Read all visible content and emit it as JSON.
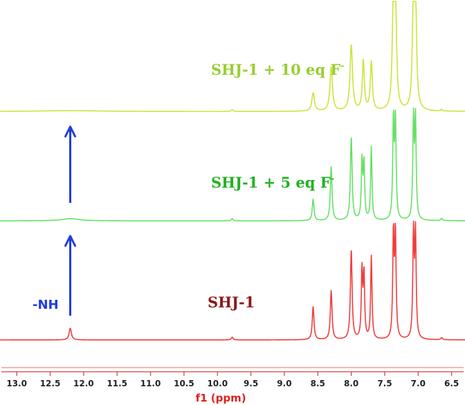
{
  "chart_data": {
    "type": "line",
    "xlabel": "f1 (ppm)",
    "xlim": [
      13.25,
      6.3
    ],
    "x_reversed": true,
    "ticks": [
      13.0,
      12.5,
      12.0,
      11.5,
      11.0,
      10.5,
      10.0,
      9.5,
      9.0,
      8.5,
      8.0,
      7.5,
      7.0,
      6.5
    ],
    "tick_labels": [
      "13.0",
      "12.5",
      "12.0",
      "11.5",
      "11.0",
      "10.5",
      "10.0",
      "9.5",
      "9.0",
      "8.5",
      "8.0",
      "7.5",
      "7.0",
      "6.5"
    ],
    "series": [
      {
        "id": "top",
        "label": "SHJ-1 + 10 eq F",
        "label_sup": "-",
        "color": "#c8e63c",
        "label_color": "#9acd32",
        "peaks": [
          {
            "x": 12.2,
            "h": 0.015,
            "w": 0.5
          },
          {
            "x": 9.78,
            "h": 0.03,
            "w": 0.015
          },
          {
            "x": 8.57,
            "h": 0.34,
            "w": 0.022
          },
          {
            "x": 8.3,
            "h": 0.82,
            "w": 0.022
          },
          {
            "x": 8.0,
            "h": 1.22,
            "w": 0.022
          },
          {
            "x": 7.82,
            "h": 0.92,
            "w": 0.018
          },
          {
            "x": 7.7,
            "h": 0.9,
            "w": 0.018
          },
          {
            "x": 7.37,
            "h": 2.0,
            "w": 0.018
          },
          {
            "x": 7.34,
            "h": 2.0,
            "w": 0.018
          },
          {
            "x": 7.07,
            "h": 2.0,
            "w": 0.018
          },
          {
            "x": 7.04,
            "h": 2.0,
            "w": 0.018
          },
          {
            "x": 6.65,
            "h": 0.03,
            "w": 0.015
          }
        ]
      },
      {
        "id": "mid",
        "label": "SHJ-1 + 5 eq F",
        "label_sup": "-",
        "color": "#66e066",
        "label_color": "#22b222",
        "peaks": [
          {
            "x": 12.2,
            "h": 0.03,
            "w": 0.15
          },
          {
            "x": 9.78,
            "h": 0.03,
            "w": 0.015
          },
          {
            "x": 8.57,
            "h": 0.29,
            "w": 0.015
          },
          {
            "x": 8.3,
            "h": 0.72,
            "w": 0.015
          },
          {
            "x": 8.0,
            "h": 1.12,
            "w": 0.015
          },
          {
            "x": 7.84,
            "h": 0.77,
            "w": 0.012
          },
          {
            "x": 7.81,
            "h": 0.74,
            "w": 0.012
          },
          {
            "x": 7.7,
            "h": 0.98,
            "w": 0.012
          },
          {
            "x": 7.37,
            "h": 1.32,
            "w": 0.012
          },
          {
            "x": 7.34,
            "h": 1.32,
            "w": 0.012
          },
          {
            "x": 7.07,
            "h": 1.32,
            "w": 0.012
          },
          {
            "x": 7.04,
            "h": 1.32,
            "w": 0.012
          },
          {
            "x": 6.65,
            "h": 0.03,
            "w": 0.015
          }
        ]
      },
      {
        "id": "bottom",
        "label": "SHJ-1",
        "label_sup": "",
        "color": "#f03c3c",
        "label_color": "#8b1a1a",
        "peaks": [
          {
            "x": 12.2,
            "h": 0.17,
            "w": 0.02
          },
          {
            "x": 9.78,
            "h": 0.04,
            "w": 0.015
          },
          {
            "x": 8.57,
            "h": 0.48,
            "w": 0.015
          },
          {
            "x": 8.3,
            "h": 0.71,
            "w": 0.015
          },
          {
            "x": 8.0,
            "h": 1.3,
            "w": 0.015
          },
          {
            "x": 7.84,
            "h": 0.97,
            "w": 0.012
          },
          {
            "x": 7.81,
            "h": 0.91,
            "w": 0.012
          },
          {
            "x": 7.7,
            "h": 1.2,
            "w": 0.012
          },
          {
            "x": 7.37,
            "h": 1.5,
            "w": 0.012
          },
          {
            "x": 7.34,
            "h": 1.5,
            "w": 0.012
          },
          {
            "x": 7.07,
            "h": 1.5,
            "w": 0.012
          },
          {
            "x": 7.04,
            "h": 1.5,
            "w": 0.012
          },
          {
            "x": 6.65,
            "h": 0.03,
            "w": 0.015
          }
        ]
      }
    ],
    "annotations": [
      {
        "text": "-NH",
        "color": "#1e3cdc"
      }
    ],
    "arrows": [
      {
        "color": "#1e3cdc",
        "x": 12.2
      },
      {
        "color": "#1e3cdc",
        "x": 12.2
      }
    ]
  }
}
